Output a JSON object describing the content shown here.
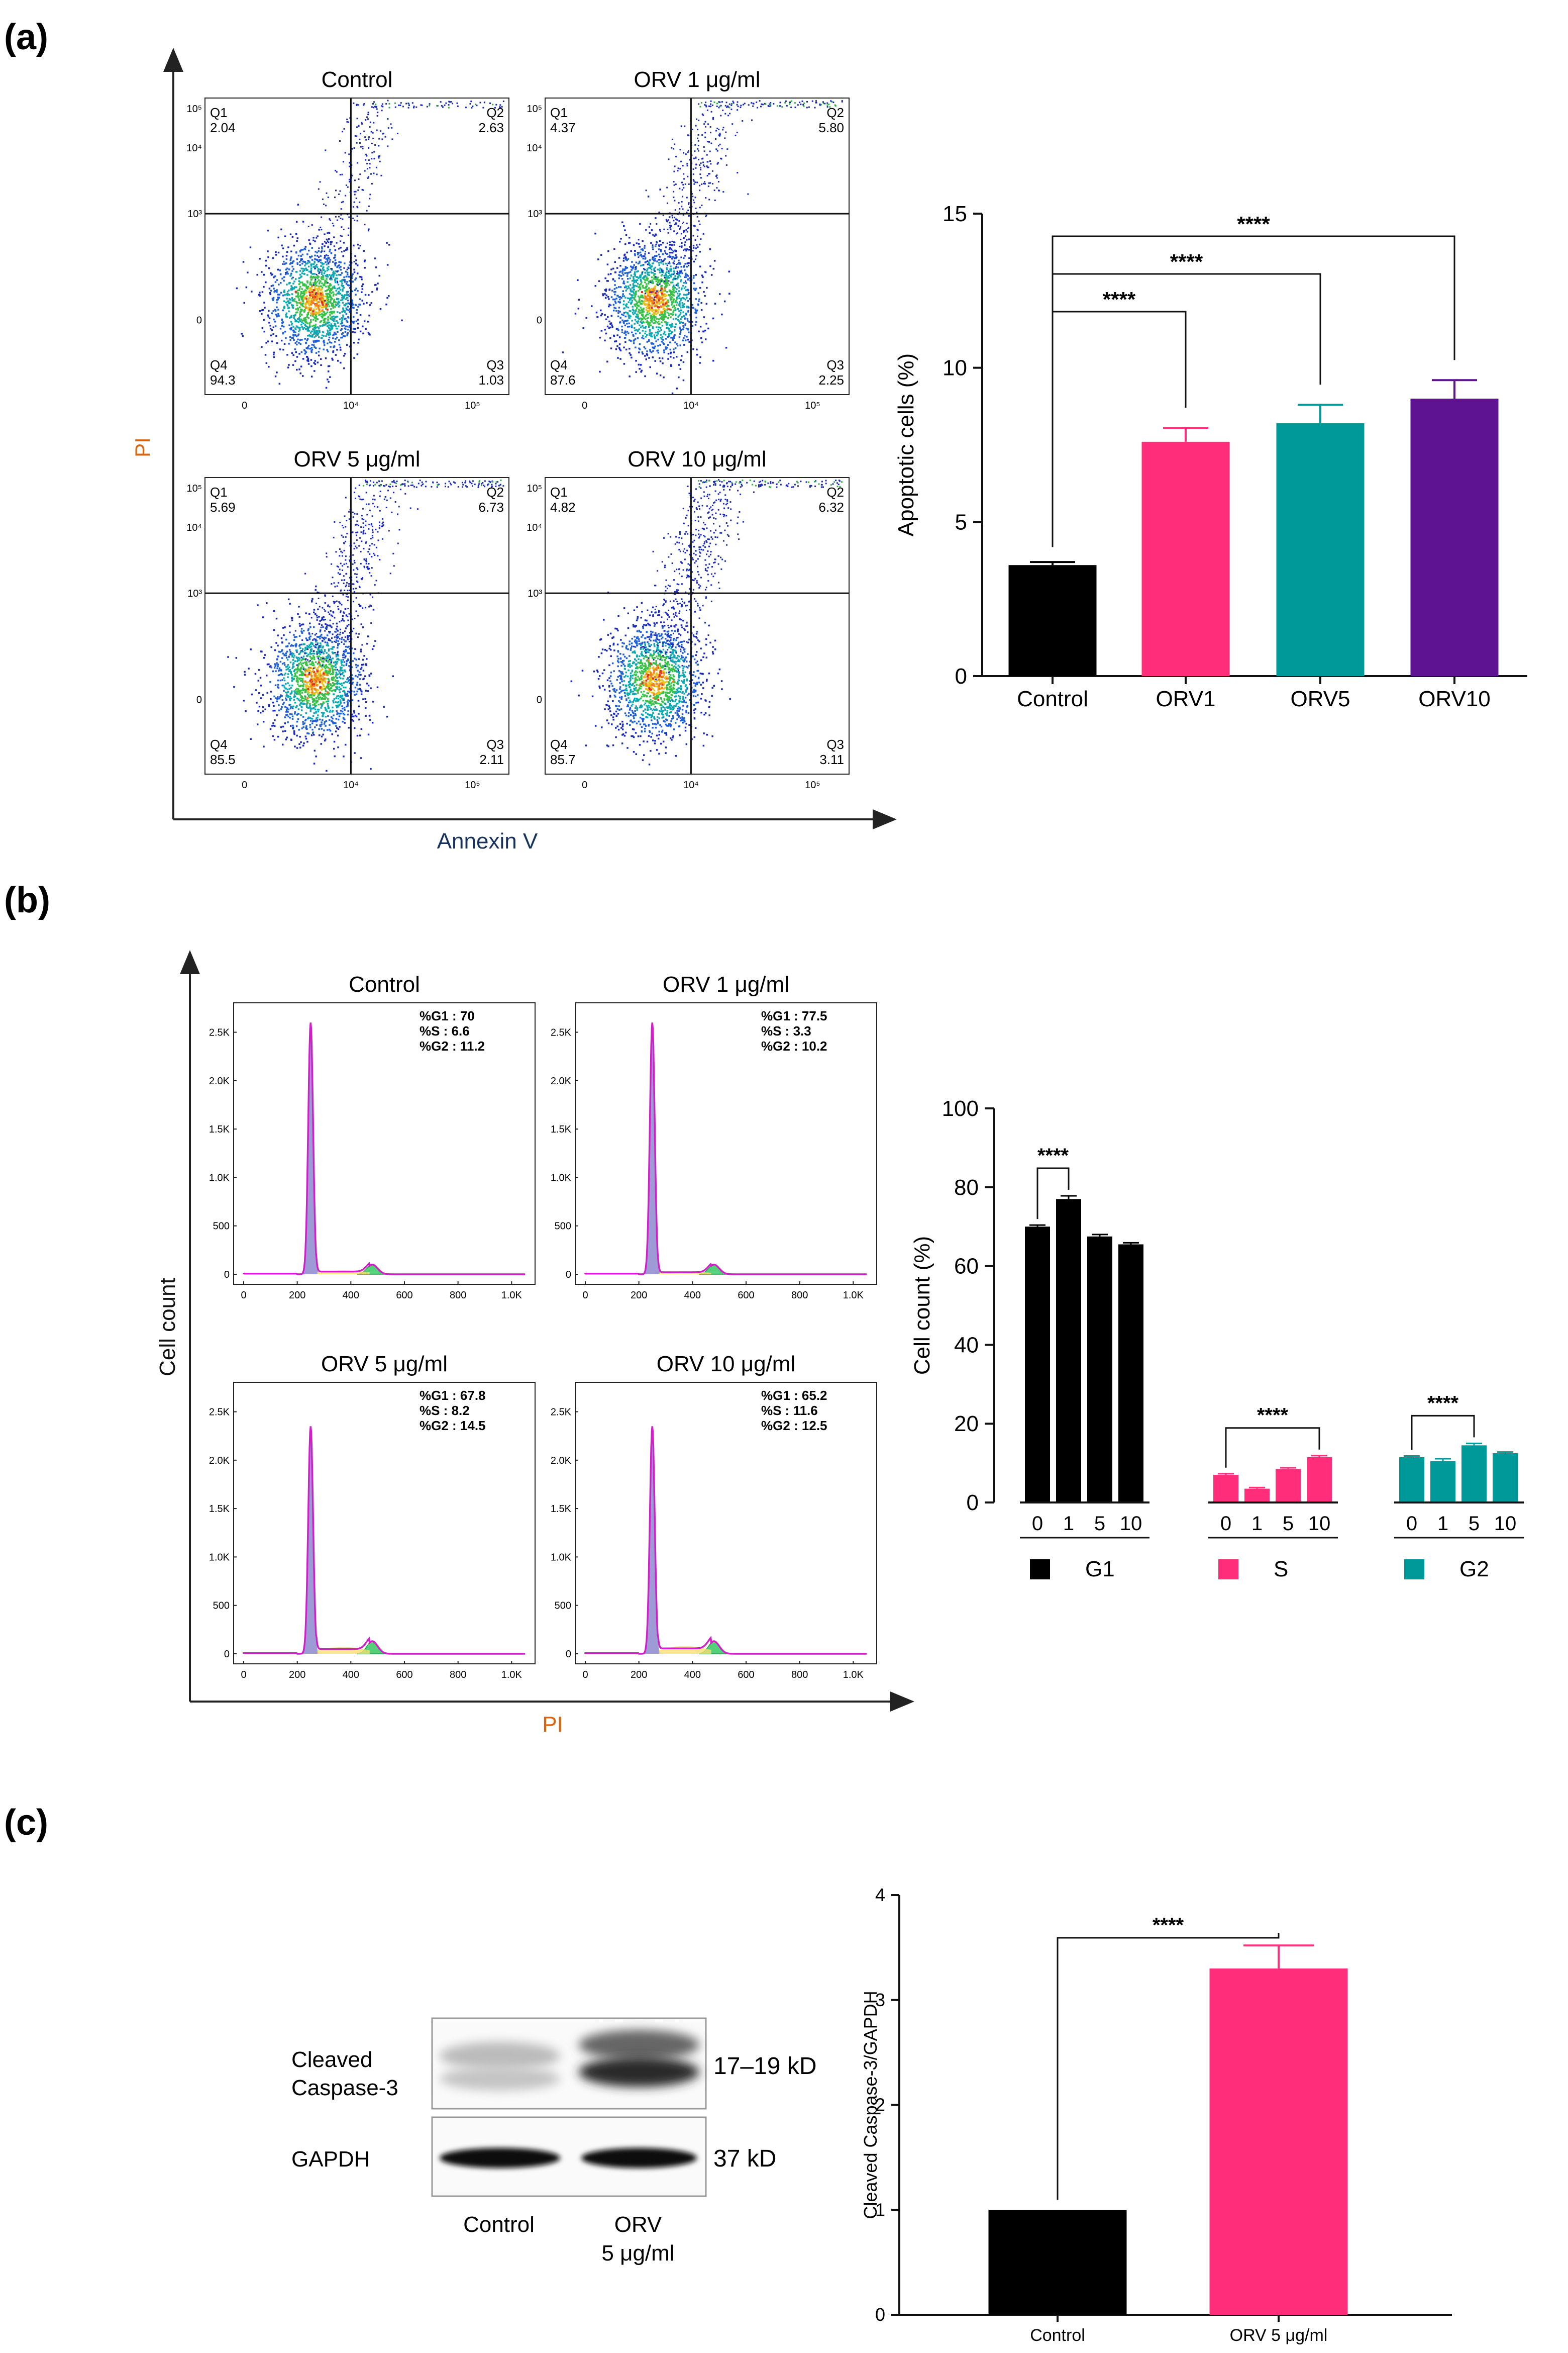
{
  "panels": {
    "a": "(a)",
    "b": "(b)",
    "c": "(c)"
  },
  "panel_a": {
    "x_axis": "Annexin V",
    "y_axis": "PI",
    "tick_labels": {
      "t0": "0",
      "t3": "10³",
      "t4": "10⁴",
      "t5": "10⁵"
    },
    "plots": [
      {
        "title": "Control",
        "q1": "2.04",
        "q2": "2.63",
        "q3": "1.03",
        "q4": "94.3",
        "spread": 0.25
      },
      {
        "title": "ORV 1 μg/ml",
        "q1": "4.37",
        "q2": "5.80",
        "q3": "2.25",
        "q4": "87.6",
        "spread": 0.55
      },
      {
        "title": "ORV 5 μg/ml",
        "q1": "5.69",
        "q2": "6.73",
        "q3": "2.11",
        "q4": "85.5",
        "spread": 0.62
      },
      {
        "title": "ORV 10 μg/ml",
        "q1": "4.82",
        "q2": "6.32",
        "q3": "3.11",
        "q4": "85.7",
        "spread": 0.65
      }
    ],
    "quadrant_labels": [
      "Q1",
      "Q2",
      "Q3",
      "Q4"
    ]
  },
  "panel_b": {
    "x_axis": "PI",
    "y_axis": "Cell count",
    "y_ticks": [
      "0",
      "500",
      "1.0K",
      "1.5K",
      "2.0K",
      "2.5K"
    ],
    "x_ticks": [
      "0",
      "200",
      "400",
      "600",
      "800",
      "1.0K"
    ],
    "plots": [
      {
        "title": "Control",
        "g1": "%G1 : 70",
        "s": "%S : 6.6",
        "g2": "%G2 : 11.2",
        "peak": 2600,
        "g2h": 100,
        "sh": 40
      },
      {
        "title": "ORV 1 μg/ml",
        "g1": "%G1 : 77.5",
        "s": "%S : 3.3",
        "g2": "%G2 : 10.2",
        "peak": 2600,
        "g2h": 100,
        "sh": 30
      },
      {
        "title": "ORV 5 μg/ml",
        "g1": "%G1 : 67.8",
        "s": "%S : 8.2",
        "g2": "%G2 : 14.5",
        "peak": 2350,
        "g2h": 130,
        "sh": 70
      },
      {
        "title": "ORV 10 μg/ml",
        "g1": "%G1 : 65.2",
        "s": "%S : 11.6",
        "g2": "%G2 : 12.5",
        "peak": 2350,
        "g2h": 130,
        "sh": 80
      }
    ]
  },
  "chart_data": [
    {
      "type": "bar",
      "title": "",
      "ylabel": "Apoptotic cells (%)",
      "xlabel": "",
      "categories": [
        "Control",
        "ORV1",
        "ORV5",
        "ORV10"
      ],
      "values": [
        3.6,
        7.6,
        8.2,
        9.0
      ],
      "errors": [
        0.1,
        0.45,
        0.6,
        0.6
      ],
      "colors": [
        "#000000",
        "#ff2d7a",
        "#009999",
        "#5e1492"
      ],
      "ylim": [
        0,
        15
      ],
      "yticks": [
        "0",
        "5",
        "10",
        "15"
      ],
      "significance": [
        {
          "from": "Control",
          "to": "ORV1",
          "label": "****"
        },
        {
          "from": "Control",
          "to": "ORV5",
          "label": "****"
        },
        {
          "from": "Control",
          "to": "ORV10",
          "label": "****"
        }
      ]
    },
    {
      "type": "bar",
      "title": "",
      "ylabel": "Cell count (%)",
      "xlabel": "",
      "categories": [
        "0",
        "1",
        "5",
        "10"
      ],
      "series": [
        {
          "name": "G1",
          "color": "#000000",
          "values": [
            70,
            77,
            67.5,
            65.5
          ],
          "errors": [
            0.4,
            0.8,
            0.5,
            0.4
          ]
        },
        {
          "name": "S",
          "color": "#ff2d7a",
          "values": [
            7,
            3.5,
            8.5,
            11.5
          ],
          "errors": [
            0.3,
            0.3,
            0.3,
            0.4
          ]
        },
        {
          "name": "G2",
          "color": "#009999",
          "values": [
            11.5,
            10.5,
            14.5,
            12.5
          ],
          "errors": [
            0.3,
            0.6,
            0.5,
            0.3
          ]
        }
      ],
      "ylim": [
        0,
        100
      ],
      "yticks": [
        "0",
        "20",
        "40",
        "60",
        "80",
        "100"
      ],
      "significance": [
        {
          "series": "G1",
          "from": "0",
          "to": "1",
          "label": "****"
        },
        {
          "series": "S",
          "from": "0",
          "to": "10",
          "label": "****"
        },
        {
          "series": "G2",
          "from": "0",
          "to": "5",
          "label": "****"
        }
      ]
    },
    {
      "type": "bar",
      "title": "",
      "ylabel": "Cleaved Caspase-3/GAPDH",
      "xlabel": "",
      "categories": [
        "Control",
        "ORV 5 μg/ml"
      ],
      "values": [
        1.0,
        3.3
      ],
      "errors": [
        0,
        0.22
      ],
      "colors": [
        "#000000",
        "#ff2d7a"
      ],
      "ylim": [
        0,
        4
      ],
      "yticks": [
        "0",
        "1",
        "2",
        "3",
        "4"
      ],
      "significance": [
        {
          "from": "Control",
          "to": "ORV 5 μg/ml",
          "label": "****"
        }
      ]
    }
  ],
  "western_blot": {
    "rows": [
      {
        "label_line1": "Cleaved",
        "label_line2": "Caspase-3",
        "size": "17–19 kD"
      },
      {
        "label_line1": "GAPDH",
        "label_line2": "",
        "size": "37 kD"
      }
    ],
    "lanes": [
      {
        "line1": "Control",
        "line2": ""
      },
      {
        "line1": "ORV",
        "line2": "5 μg/ml"
      }
    ]
  }
}
